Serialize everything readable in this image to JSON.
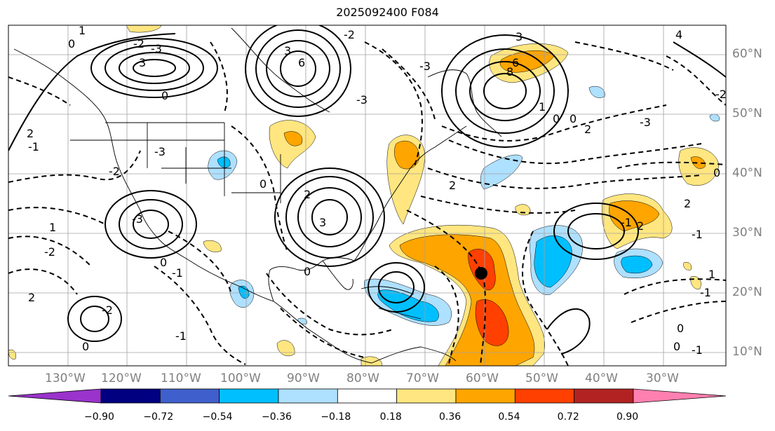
{
  "title": "2025092400 F084",
  "lon_labels": [
    "130°W",
    "120°W",
    "110°W",
    "100°W",
    "90°W",
    "80°W",
    "70°W",
    "60°W",
    "50°W",
    "40°W",
    "30°W"
  ],
  "lat_labels": [
    "60°N",
    "50°N",
    "40°N",
    "30°N",
    "20°N",
    "10°N"
  ],
  "colorbar": {
    "colors": [
      "#9933cc",
      "#000080",
      "#3f5fcc",
      "#00bfff",
      "#aee0ff",
      "#ffffff",
      "#ffe680",
      "#ffa500",
      "#ff4000",
      "#b22222",
      "#ff80b0"
    ],
    "labels": [
      "−0.90",
      "−0.72",
      "−0.54",
      "−0.36",
      "−0.18",
      "0.18",
      "0.36",
      "0.54",
      "0.72",
      "0.90"
    ]
  },
  "contour_labels": [
    "1",
    "0",
    "-2",
    "-3",
    "3",
    "-3",
    "-1",
    "2",
    "0",
    "6",
    "3",
    "-3",
    "-2",
    "8",
    "6",
    "0",
    "3",
    "1",
    "2",
    "0",
    "-3",
    "4",
    "-2",
    "-3",
    "0",
    "-2",
    "2",
    "-1",
    "2",
    "-1",
    "2",
    "0",
    "0",
    "-1",
    "1",
    "-1",
    "0",
    "3",
    "2",
    "0",
    "-1",
    "0",
    "0",
    "-2",
    "2",
    "1",
    "-1",
    "-3",
    "-2"
  ],
  "storm_marker": "tropical-cyclone-center"
}
